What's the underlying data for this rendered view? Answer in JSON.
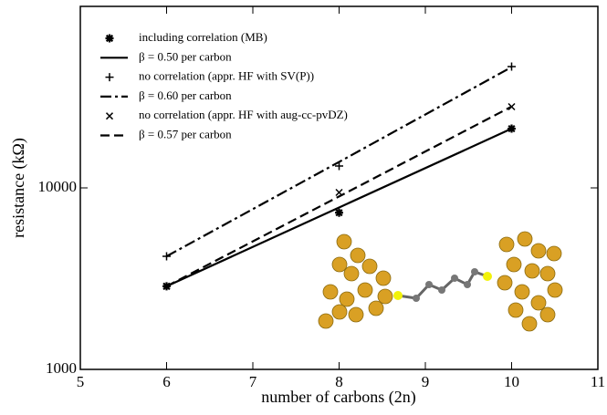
{
  "chart_data": {
    "type": "line",
    "x_label": "number of carbons (2n)",
    "y_label": "resistance (kΩ)",
    "x": [
      6,
      8,
      10
    ],
    "xlim": [
      5,
      11
    ],
    "xticks": [
      5,
      6,
      7,
      8,
      9,
      10,
      11
    ],
    "ylim": [
      1000,
      100000
    ],
    "yticks": [
      1000,
      10000
    ],
    "log_y": true,
    "legend_position": "upper left",
    "series": [
      {
        "name": "including correlation (MB)",
        "color": "#000000",
        "marker": "star",
        "values": [
          2870,
          7300,
          21200
        ]
      },
      {
        "name": "β = 0.50 per carbon",
        "color": "#000000",
        "dash": "solid",
        "values": [
          2870,
          7800,
          21200
        ]
      },
      {
        "name": "no correlation (appr. HF with SV(P))",
        "color": "#000000",
        "marker": "plus",
        "values": [
          4200,
          13200,
          46600
        ]
      },
      {
        "name": "β = 0.60 per carbon",
        "color": "#000000",
        "dash": "dashdot",
        "values": [
          4200,
          13900,
          46300
        ]
      },
      {
        "name": "no correlation (appr. HF with aug-cc-pvDZ)",
        "color": "#000000",
        "marker": "cross",
        "values": [
          2870,
          9440,
          28000
        ]
      },
      {
        "name": "β = 0.57 per carbon",
        "color": "#000000",
        "dash": "dashed",
        "values": [
          2870,
          8970,
          28060
        ]
      }
    ]
  }
}
